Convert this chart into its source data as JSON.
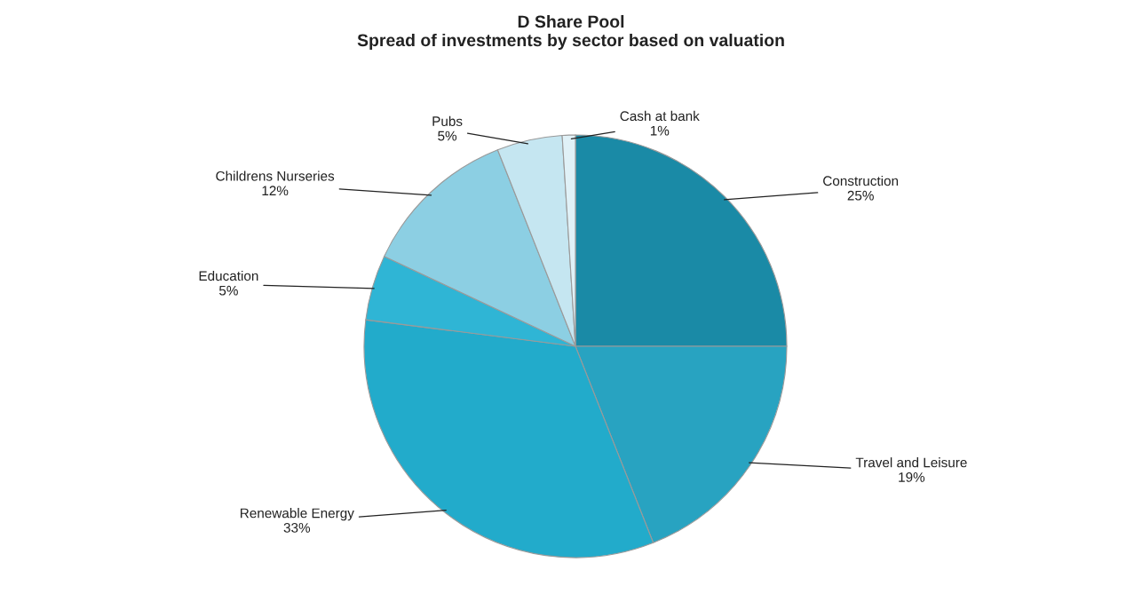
{
  "chart_data": {
    "type": "pie",
    "title": "D Share Pool",
    "subtitle": "Spread of investments by sector based on valuation",
    "categories": [
      "Construction",
      "Travel and Leisure",
      "Renewable Energy",
      "Education",
      "Childrens Nurseries",
      "Pubs",
      "Cash at bank"
    ],
    "values": [
      25,
      19,
      33,
      5,
      12,
      5,
      1
    ],
    "value_labels": [
      "25%",
      "19%",
      "33%",
      "5%",
      "12%",
      "5%",
      "1%"
    ],
    "colors": [
      "#1a8aa6",
      "#28a3c1",
      "#22abcb",
      "#2fb5d5",
      "#8ccfe3",
      "#c5e6f1",
      "#e0f1f7"
    ]
  }
}
